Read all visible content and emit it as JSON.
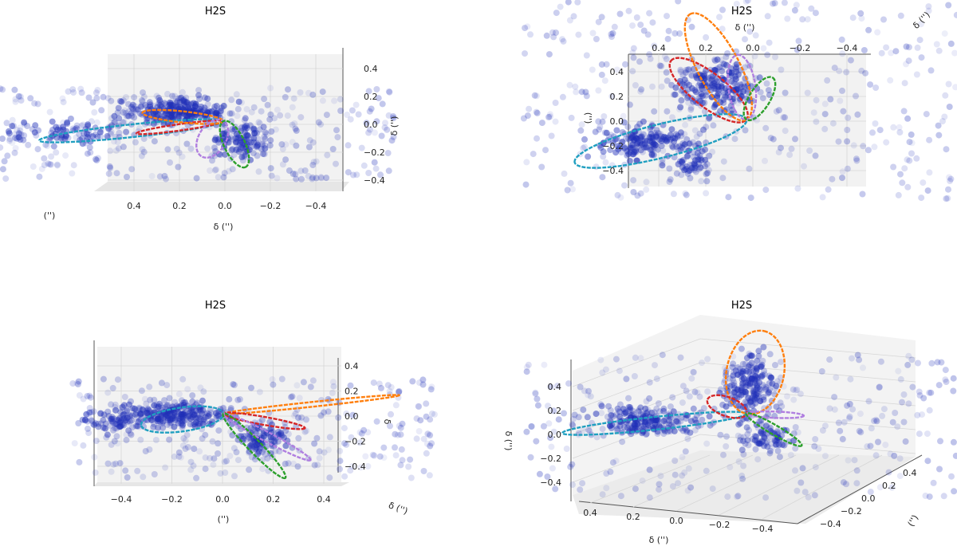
{
  "colors": {
    "points": "#1f2fb8",
    "orange": "#ff7f0e",
    "red": "#d62728",
    "purple": "#b07fe0",
    "green": "#2ca02c",
    "cyan": "#1f9fc0",
    "pane": "#f2f2f2",
    "grid": "#d6d6d6"
  },
  "chart_data": [
    {
      "type": "scatter",
      "view": "3d-side",
      "title": "H2S",
      "xlabel": "δ ('')",
      "ylabel": "('')",
      "zlabel": "δ ('')",
      "x_ticks": [
        "0.4",
        "0.2",
        "0.0",
        "−0.2",
        "−0.4"
      ],
      "z_ticks": [
        "0.4",
        "0.2",
        "0.0",
        "−0.2",
        "−0.4"
      ],
      "xlim": [
        -0.5,
        0.5
      ],
      "zlim": [
        -0.5,
        0.5
      ],
      "series": [
        {
          "color": "orange"
        },
        {
          "color": "red"
        },
        {
          "color": "purple"
        },
        {
          "color": "green"
        },
        {
          "color": "cyan"
        }
      ]
    },
    {
      "type": "scatter",
      "view": "3d-top",
      "title": "H2S",
      "xlabel": "δ ('')",
      "ylabel": "('')",
      "zlabel": "δ ('')",
      "x_ticks": [
        "0.4",
        "0.2",
        "0.0",
        "−0.2",
        "−0.4"
      ],
      "y_ticks": [
        "0.4",
        "0.2",
        "0.0",
        "−0.2",
        "−0.4"
      ],
      "xlim": [
        -0.5,
        0.5
      ],
      "ylim": [
        -0.5,
        0.5
      ]
    },
    {
      "type": "scatter",
      "view": "3d-front",
      "title": "H2S",
      "xlabel": "('')",
      "ylabel": "δ ('')",
      "zlabel": "δ",
      "x_ticks": [
        "−0.4",
        "−0.2",
        "0.0",
        "0.2",
        "0.4"
      ],
      "z_ticks": [
        "0.4",
        "0.2",
        "0.0",
        "−0.2",
        "−0.4"
      ],
      "xlim": [
        -0.5,
        0.5
      ],
      "zlim": [
        -0.5,
        0.5
      ]
    },
    {
      "type": "scatter",
      "view": "3d-perspective",
      "title": "H2S",
      "xlabel": "δ ('')",
      "ylabel": "('')",
      "zlabel": "δ ('')",
      "x_ticks": [
        "0.4",
        "0.2",
        "0.0",
        "−0.2",
        "−0.4"
      ],
      "y_ticks": [
        "−0.4",
        "−0.2",
        "0.0",
        "0.2",
        "0.4"
      ],
      "z_ticks": [
        "0.4",
        "0.2",
        "0.0",
        "−0.2",
        "−0.4"
      ],
      "xlim": [
        -0.5,
        0.5
      ],
      "ylim": [
        -0.5,
        0.5
      ],
      "zlim": [
        -0.5,
        0.5
      ]
    }
  ]
}
